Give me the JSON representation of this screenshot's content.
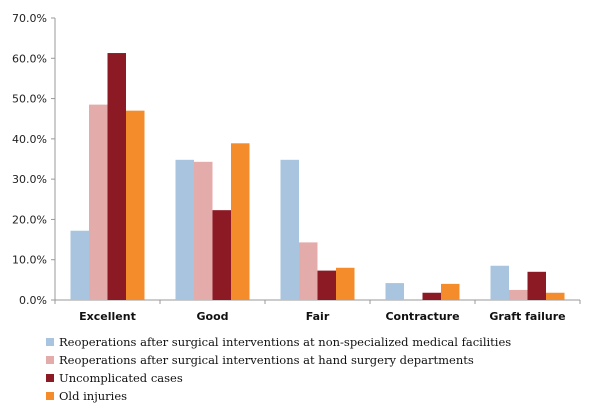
{
  "chart_data": {
    "type": "bar",
    "categories": [
      "Excellent",
      "Good",
      "Fair",
      "Contracture",
      "Graft failure"
    ],
    "series": [
      {
        "name": "Reoperations after surgical interventions at non-specialized medical facilities",
        "color": "#a9c4de",
        "values": [
          17.2,
          34.8,
          34.8,
          4.2,
          8.5
        ]
      },
      {
        "name": "Reoperations after surgical interventions at hand surgery departments",
        "color": "#e4abab",
        "values": [
          48.5,
          34.3,
          14.3,
          0.0,
          2.5
        ]
      },
      {
        "name": "Uncomplicated cases",
        "color": "#8b1a24",
        "values": [
          61.3,
          22.3,
          7.3,
          1.8,
          7.0
        ]
      },
      {
        "name": "Old injuries",
        "color": "#f58c2c",
        "values": [
          47.0,
          38.9,
          8.0,
          4.0,
          1.8
        ]
      }
    ],
    "ylim": [
      0,
      70
    ],
    "yticks": [
      0,
      10,
      20,
      30,
      40,
      50,
      60,
      70
    ],
    "ytick_labels": [
      "0.0%",
      "10.0%",
      "20.0%",
      "30.0%",
      "40.0%",
      "50.0%",
      "60.0%",
      "70.0%"
    ],
    "grid": false,
    "legend_position": "bottom-left"
  }
}
